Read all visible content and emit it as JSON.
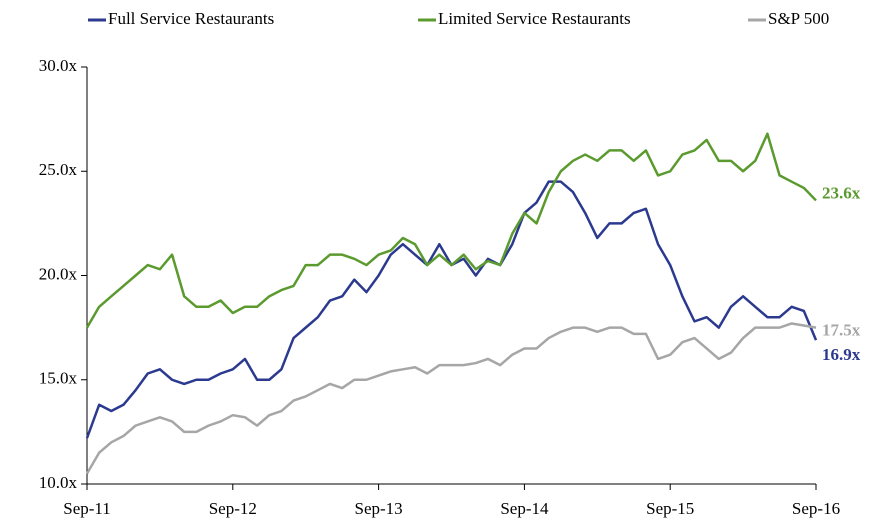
{
  "chart_data": {
    "type": "line",
    "categories": [
      "Sep-11",
      null,
      null,
      null,
      null,
      null,
      null,
      null,
      null,
      null,
      null,
      null,
      "Sep-12",
      null,
      null,
      null,
      null,
      null,
      null,
      null,
      null,
      null,
      null,
      null,
      "Sep-13",
      null,
      null,
      null,
      null,
      null,
      null,
      null,
      null,
      null,
      null,
      null,
      "Sep-14",
      null,
      null,
      null,
      null,
      null,
      null,
      null,
      null,
      null,
      null,
      null,
      "Sep-15",
      null,
      null,
      null,
      null,
      null,
      null,
      null,
      null,
      null,
      null,
      null,
      "Sep-16"
    ],
    "series": [
      {
        "name": "Full Service Restaurants",
        "color": "#2b3a8f",
        "values": [
          12.2,
          13.8,
          13.5,
          13.8,
          14.5,
          15.3,
          15.5,
          15.0,
          14.8,
          15.0,
          15.0,
          15.3,
          15.5,
          16.0,
          15.0,
          15.0,
          15.5,
          17.0,
          17.5,
          18.0,
          18.8,
          19.0,
          19.8,
          19.2,
          20.0,
          21.0,
          21.5,
          21.0,
          20.5,
          21.5,
          20.5,
          20.8,
          20.0,
          20.8,
          20.5,
          21.5,
          23.0,
          23.5,
          24.5,
          24.5,
          24.0,
          23.0,
          21.8,
          22.5,
          22.5,
          23.0,
          23.2,
          21.5,
          20.5,
          19.0,
          17.8,
          18.0,
          17.5,
          18.5,
          19.0,
          18.5,
          18.0,
          18.0,
          18.5,
          18.3,
          16.9
        ],
        "value_labels": [
          null,
          null,
          null,
          null,
          null,
          null,
          null,
          null,
          null,
          null,
          null,
          null,
          null,
          null,
          null,
          null,
          null,
          null,
          null,
          null,
          null,
          null,
          null,
          null,
          null,
          null,
          null,
          null,
          null,
          null,
          null,
          null,
          null,
          null,
          null,
          null,
          null,
          null,
          null,
          null,
          null,
          null,
          null,
          null,
          null,
          null,
          null,
          null,
          null,
          null,
          null,
          null,
          null,
          null,
          null,
          null,
          null,
          null,
          null,
          null,
          "16.9x"
        ]
      },
      {
        "name": "Limited Service Restaurants",
        "color": "#5b9a2e",
        "values": [
          17.5,
          18.5,
          19.0,
          19.5,
          20.0,
          20.5,
          20.3,
          21.0,
          19.0,
          18.5,
          18.5,
          18.8,
          18.2,
          18.5,
          18.5,
          19.0,
          19.3,
          19.5,
          20.5,
          20.5,
          21.0,
          21.0,
          20.8,
          20.5,
          21.0,
          21.2,
          21.8,
          21.5,
          20.5,
          21.0,
          20.5,
          21.0,
          20.3,
          20.7,
          20.5,
          22.0,
          23.0,
          22.5,
          24.0,
          25.0,
          25.5,
          25.8,
          25.5,
          26.0,
          26.0,
          25.5,
          26.0,
          24.8,
          25.0,
          25.8,
          26.0,
          26.5,
          25.5,
          25.5,
          25.0,
          25.5,
          26.8,
          24.8,
          24.5,
          24.2,
          23.6
        ],
        "value_labels": [
          null,
          null,
          null,
          null,
          null,
          null,
          null,
          null,
          null,
          null,
          null,
          null,
          null,
          null,
          null,
          null,
          null,
          null,
          null,
          null,
          null,
          null,
          null,
          null,
          null,
          null,
          null,
          null,
          null,
          null,
          null,
          null,
          null,
          null,
          null,
          null,
          null,
          null,
          null,
          null,
          null,
          null,
          null,
          null,
          null,
          null,
          null,
          null,
          null,
          null,
          null,
          null,
          null,
          null,
          null,
          null,
          null,
          null,
          null,
          null,
          "23.6x"
        ]
      },
      {
        "name": "S&P 500",
        "color": "#a6a6a6",
        "values": [
          10.5,
          11.5,
          12.0,
          12.3,
          12.8,
          13.0,
          13.2,
          13.0,
          12.5,
          12.5,
          12.8,
          13.0,
          13.3,
          13.2,
          12.8,
          13.3,
          13.5,
          14.0,
          14.2,
          14.5,
          14.8,
          14.6,
          15.0,
          15.0,
          15.2,
          15.4,
          15.5,
          15.6,
          15.3,
          15.7,
          15.7,
          15.7,
          15.8,
          16.0,
          15.7,
          16.2,
          16.5,
          16.5,
          17.0,
          17.3,
          17.5,
          17.5,
          17.3,
          17.5,
          17.5,
          17.2,
          17.2,
          16.0,
          16.2,
          16.8,
          17.0,
          16.5,
          16.0,
          16.3,
          17.0,
          17.5,
          17.5,
          17.5,
          17.7,
          17.6,
          17.5
        ],
        "value_labels": [
          null,
          null,
          null,
          null,
          null,
          null,
          null,
          null,
          null,
          null,
          null,
          null,
          null,
          null,
          null,
          null,
          null,
          null,
          null,
          null,
          null,
          null,
          null,
          null,
          null,
          null,
          null,
          null,
          null,
          null,
          null,
          null,
          null,
          null,
          null,
          null,
          null,
          null,
          null,
          null,
          null,
          null,
          null,
          null,
          null,
          null,
          null,
          null,
          null,
          null,
          null,
          null,
          null,
          null,
          null,
          null,
          null,
          null,
          null,
          null,
          "17.5x"
        ]
      }
    ],
    "ylim": [
      10,
      30
    ],
    "yticks": [
      {
        "value": 10,
        "label": "10.0x"
      },
      {
        "value": 15,
        "label": "15.0x"
      },
      {
        "value": 20,
        "label": "20.0x"
      },
      {
        "value": 25,
        "label": "25.0x"
      },
      {
        "value": 30,
        "label": "30.0x"
      }
    ],
    "legend": "top"
  }
}
